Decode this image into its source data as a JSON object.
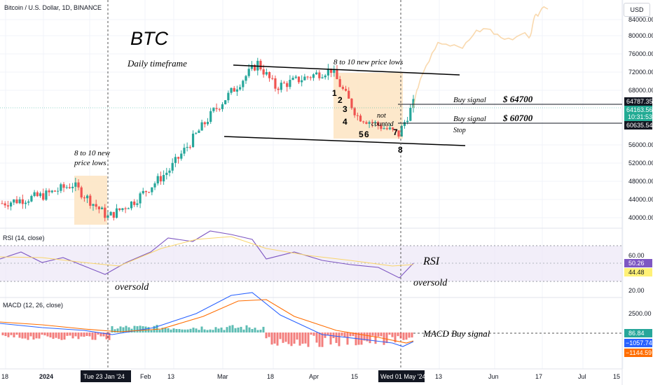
{
  "header": {
    "symbol": "Bitcoin / U.S. Dollar, 1D, BINANCE",
    "currency": "USD"
  },
  "annotations": {
    "btc": "BTC",
    "timeframe": "Daily timeframe",
    "lows_top": "8 to 10 new price lows",
    "lows_left_1": "8 to 10 new",
    "lows_left_2": "price lows",
    "not_counted_1": "not",
    "not_counted_2": "counted",
    "buy_signal_1": "Buy signal",
    "buy_price_1": "$ 64700",
    "buy_signal_2": "Buy signal",
    "buy_price_2": "$ 60700",
    "stop": "Stop",
    "rsi": "RSI",
    "oversold_1": "oversold",
    "oversold_2": "oversold",
    "macd_buy": "MACD Buy signal",
    "counts": [
      "1",
      "2",
      "3",
      "4",
      "5",
      "6",
      "7",
      "8"
    ]
  },
  "price_axis": {
    "ticks": [
      "84000.00",
      "80000.00",
      "76000.00",
      "72000.00",
      "68000.00",
      "56000.00",
      "52000.00",
      "48000.00",
      "44000.00",
      "40000.00"
    ],
    "tags": [
      {
        "label": "64787.35",
        "color": "#131722"
      },
      {
        "label": "64163.56",
        "color": "#22ab94"
      },
      {
        "label": "10:31:53",
        "color": "#22ab94"
      },
      {
        "label": "60635.54",
        "color": "#131722"
      }
    ]
  },
  "rsi_panel": {
    "title": "RSI (14, close)",
    "ticks": [
      "60.00",
      "20.00"
    ],
    "tags": [
      {
        "label": "50.26",
        "color": "#7e57c2"
      },
      {
        "label": "44.48",
        "color": "#fff176"
      }
    ]
  },
  "macd_panel": {
    "title": "MACD (12, 26, close)",
    "ticks": [
      "2500.00"
    ],
    "tags": [
      {
        "label": "86.84",
        "color": "#26a69a"
      },
      {
        "label": "−1057.74",
        "color": "#2962ff"
      },
      {
        "label": "−1144.59",
        "color": "#ff6d00"
      }
    ]
  },
  "time_axis": {
    "labels": [
      "18",
      "2024",
      "15",
      "Feb",
      "13",
      "Mar",
      "18",
      "Apr",
      "15",
      "13",
      "Jun",
      "17",
      "Jul",
      "15"
    ],
    "highlights": [
      "Tue 23 Jan '24",
      "Wed 01 May '24"
    ]
  },
  "chart_data": {
    "type": "candlestick",
    "symbol": "BTC/USD",
    "timeframe": "1D",
    "ylim": [
      38000,
      86000
    ],
    "candles_approx_close": [
      {
        "date": "2023-12-18",
        "close": 42500
      },
      {
        "date": "2024-01-01",
        "close": 44200
      },
      {
        "date": "2024-01-11",
        "close": 46600
      },
      {
        "date": "2024-01-23",
        "close": 39500
      },
      {
        "date": "2024-02-01",
        "close": 43000
      },
      {
        "date": "2024-02-13",
        "close": 49800
      },
      {
        "date": "2024-02-28",
        "close": 62500
      },
      {
        "date": "2024-03-14",
        "close": 73000
      },
      {
        "date": "2024-03-20",
        "close": 67800
      },
      {
        "date": "2024-04-08",
        "close": 71600
      },
      {
        "date": "2024-04-17",
        "close": 61500
      },
      {
        "date": "2024-05-01",
        "close": 57500
      },
      {
        "date": "2024-05-06",
        "close": 64163
      }
    ],
    "levels": [
      {
        "name": "Buy signal",
        "value": 64700
      },
      {
        "name": "Buy signal",
        "value": 60700
      }
    ],
    "rsi_levels": [
      60,
      20
    ],
    "rsi_last": [
      50.26,
      44.48
    ],
    "macd_last": {
      "hist": 86.84,
      "macd": -1057.74,
      "signal": -1144.59
    }
  }
}
